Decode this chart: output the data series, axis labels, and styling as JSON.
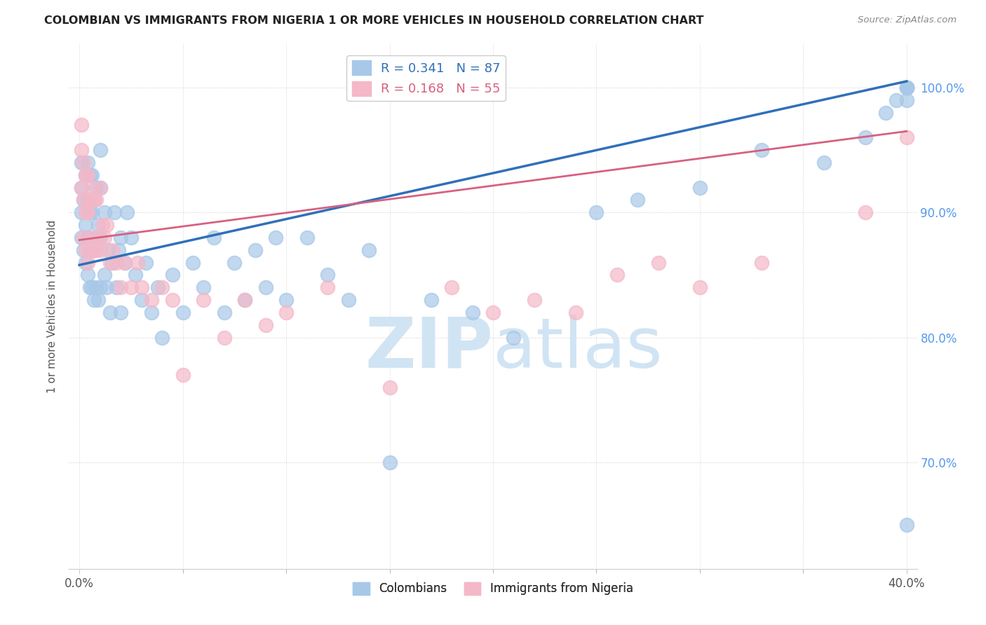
{
  "title": "COLOMBIAN VS IMMIGRANTS FROM NIGERIA 1 OR MORE VEHICLES IN HOUSEHOLD CORRELATION CHART",
  "source": "Source: ZipAtlas.com",
  "ylabel": "1 or more Vehicles in Household",
  "ytick_vals": [
    0.7,
    0.8,
    0.9,
    1.0
  ],
  "ytick_labels": [
    "70.0%",
    "80.0%",
    "90.0%",
    "100.0%"
  ],
  "legend_blue_r": "R = 0.341",
  "legend_blue_n": "N = 87",
  "legend_pink_r": "R = 0.168",
  "legend_pink_n": "N = 55",
  "blue_scatter_color": "#a8c8e8",
  "pink_scatter_color": "#f4b8c8",
  "blue_line_color": "#3070b8",
  "pink_line_color": "#d86080",
  "watermark_color": "#d0e4f4",
  "background_color": "#ffffff",
  "grid_color": "#cccccc",
  "colombians_x": [
    0.001,
    0.001,
    0.001,
    0.001,
    0.002,
    0.002,
    0.003,
    0.003,
    0.003,
    0.004,
    0.004,
    0.004,
    0.004,
    0.005,
    0.005,
    0.005,
    0.005,
    0.006,
    0.006,
    0.006,
    0.006,
    0.007,
    0.007,
    0.007,
    0.008,
    0.008,
    0.008,
    0.009,
    0.009,
    0.01,
    0.01,
    0.01,
    0.01,
    0.012,
    0.012,
    0.013,
    0.014,
    0.015,
    0.016,
    0.017,
    0.018,
    0.019,
    0.02,
    0.02,
    0.022,
    0.023,
    0.025,
    0.027,
    0.03,
    0.032,
    0.035,
    0.038,
    0.04,
    0.045,
    0.05,
    0.055,
    0.06,
    0.065,
    0.07,
    0.075,
    0.08,
    0.085,
    0.09,
    0.095,
    0.1,
    0.11,
    0.12,
    0.13,
    0.14,
    0.15,
    0.17,
    0.19,
    0.21,
    0.25,
    0.27,
    0.3,
    0.33,
    0.36,
    0.38,
    0.39,
    0.395,
    0.4,
    0.4,
    0.4,
    0.4,
    0.4,
    0.4
  ],
  "colombians_y": [
    0.88,
    0.9,
    0.92,
    0.94,
    0.87,
    0.91,
    0.86,
    0.89,
    0.93,
    0.85,
    0.88,
    0.91,
    0.94,
    0.84,
    0.87,
    0.9,
    0.93,
    0.84,
    0.87,
    0.9,
    0.93,
    0.83,
    0.87,
    0.91,
    0.84,
    0.88,
    0.92,
    0.83,
    0.89,
    0.84,
    0.88,
    0.92,
    0.95,
    0.85,
    0.9,
    0.84,
    0.87,
    0.82,
    0.86,
    0.9,
    0.84,
    0.87,
    0.82,
    0.88,
    0.86,
    0.9,
    0.88,
    0.85,
    0.83,
    0.86,
    0.82,
    0.84,
    0.8,
    0.85,
    0.82,
    0.86,
    0.84,
    0.88,
    0.82,
    0.86,
    0.83,
    0.87,
    0.84,
    0.88,
    0.83,
    0.88,
    0.85,
    0.83,
    0.87,
    0.7,
    0.83,
    0.82,
    0.8,
    0.9,
    0.91,
    0.92,
    0.95,
    0.94,
    0.96,
    0.98,
    0.99,
    0.99,
    1.0,
    1.0,
    1.0,
    1.0,
    0.65
  ],
  "nigerians_x": [
    0.001,
    0.001,
    0.001,
    0.002,
    0.002,
    0.002,
    0.003,
    0.003,
    0.003,
    0.004,
    0.004,
    0.004,
    0.005,
    0.005,
    0.006,
    0.006,
    0.007,
    0.007,
    0.008,
    0.008,
    0.009,
    0.01,
    0.01,
    0.011,
    0.012,
    0.013,
    0.015,
    0.016,
    0.018,
    0.02,
    0.022,
    0.025,
    0.028,
    0.03,
    0.035,
    0.04,
    0.045,
    0.05,
    0.06,
    0.07,
    0.08,
    0.09,
    0.1,
    0.12,
    0.15,
    0.18,
    0.2,
    0.22,
    0.24,
    0.26,
    0.28,
    0.3,
    0.33,
    0.38,
    0.4
  ],
  "nigerians_y": [
    0.92,
    0.95,
    0.97,
    0.88,
    0.91,
    0.94,
    0.87,
    0.9,
    0.93,
    0.86,
    0.9,
    0.93,
    0.87,
    0.91,
    0.88,
    0.92,
    0.87,
    0.91,
    0.87,
    0.91,
    0.88,
    0.87,
    0.92,
    0.89,
    0.88,
    0.89,
    0.86,
    0.87,
    0.86,
    0.84,
    0.86,
    0.84,
    0.86,
    0.84,
    0.83,
    0.84,
    0.83,
    0.77,
    0.83,
    0.8,
    0.83,
    0.81,
    0.82,
    0.84,
    0.76,
    0.84,
    0.82,
    0.83,
    0.82,
    0.85,
    0.86,
    0.84,
    0.86,
    0.9,
    0.96
  ],
  "xlim": [
    -0.005,
    0.405
  ],
  "ylim": [
    0.615,
    1.035
  ],
  "blue_trend_x": [
    0.0,
    0.4
  ],
  "blue_trend_y": [
    0.858,
    1.005
  ],
  "pink_trend_x": [
    0.0,
    0.4
  ],
  "pink_trend_y": [
    0.878,
    0.965
  ],
  "xtick_positions": [
    0.0,
    0.4
  ],
  "xtick_labels": [
    "0.0%",
    "40.0%"
  ]
}
